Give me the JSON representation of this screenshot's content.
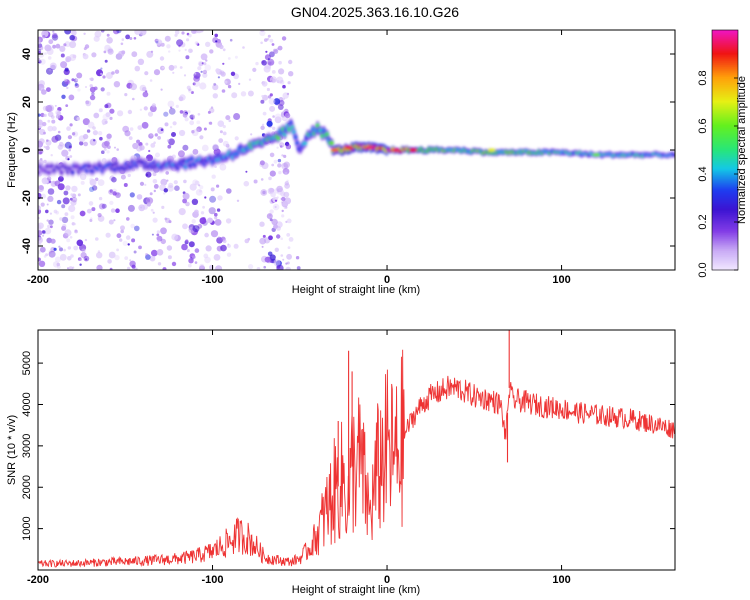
{
  "title": "GN04.2025.363.16.10.G26",
  "chart_data": [
    {
      "type": "heatmap",
      "xlabel": "Height of straight line (km)",
      "ylabel": "Frequency (Hz)",
      "xlim": [
        -200,
        165
      ],
      "ylim": [
        -50,
        50
      ],
      "xticks": [
        "-200",
        "-100",
        "0",
        "100"
      ],
      "xtick_values": [
        -200,
        -100,
        0,
        100
      ],
      "yticks": [
        "-40",
        "-20",
        "0",
        "20",
        "40"
      ],
      "ytick_values": [
        -40,
        -20,
        0,
        20,
        40
      ],
      "colorbar": {
        "label": "Normalized spectral amplitude",
        "range": [
          0.0,
          1.0
        ],
        "ticks": [
          "0.0",
          "0.2",
          "0.4",
          "0.6",
          "0.8"
        ],
        "tick_values": [
          0.0,
          0.2,
          0.4,
          0.6,
          0.8
        ]
      },
      "ridge": {
        "x": [
          -200,
          -180,
          -160,
          -140,
          -120,
          -100,
          -90,
          -80,
          -70,
          -60,
          -55,
          -50,
          -45,
          -40,
          -35,
          -30,
          -25,
          -20,
          -10,
          0,
          20,
          40,
          60,
          80,
          100,
          120,
          140,
          160,
          165
        ],
        "freq": [
          -8,
          -8,
          -7,
          -6,
          -6,
          -4,
          -2,
          1,
          3,
          7,
          10,
          0,
          7,
          9,
          6,
          0,
          0,
          1,
          1,
          0,
          0,
          0,
          -1,
          -1,
          -1,
          -2,
          -2,
          -2,
          -2
        ],
        "amplitude": [
          0.2,
          0.25,
          0.3,
          0.3,
          0.35,
          0.35,
          0.4,
          0.45,
          0.45,
          0.5,
          0.4,
          0.35,
          0.45,
          0.45,
          0.5,
          0.55,
          0.7,
          0.8,
          0.85,
          0.9,
          0.6,
          0.5,
          0.55,
          0.5,
          0.45,
          0.4,
          0.45,
          0.35,
          0.3
        ]
      }
    },
    {
      "type": "line",
      "xlabel": "Height of straight line (km)",
      "ylabel": "SNR (10 * v/v)",
      "xlim": [
        -200,
        165
      ],
      "ylim": [
        0,
        5800
      ],
      "xticks": [
        "-200",
        "-100",
        "0",
        "100"
      ],
      "xtick_values": [
        -200,
        -100,
        0,
        100
      ],
      "yticks": [
        "1000",
        "2000",
        "3000",
        "4000",
        "5000"
      ],
      "ytick_values": [
        1000,
        2000,
        3000,
        4000,
        5000
      ],
      "series": [
        {
          "name": "SNR",
          "color": "#ee3333",
          "x": [
            -200,
            -180,
            -160,
            -140,
            -120,
            -110,
            -100,
            -90,
            -85,
            -80,
            -75,
            -70,
            -60,
            -55,
            -50,
            -45,
            -40,
            -35,
            -30,
            -25,
            -22,
            -20,
            -15,
            -10,
            -5,
            0,
            5,
            10,
            15,
            20,
            25,
            30,
            35,
            40,
            45,
            50,
            55,
            60,
            65,
            68,
            70,
            72,
            75,
            80,
            90,
            100,
            110,
            120,
            130,
            140,
            150,
            160,
            165
          ],
          "values": [
            150,
            160,
            190,
            220,
            270,
            330,
            450,
            700,
            850,
            780,
            560,
            300,
            220,
            200,
            280,
            500,
            850,
            1400,
            1900,
            2200,
            1600,
            2500,
            2600,
            1300,
            2500,
            2900,
            2700,
            3300,
            3700,
            4000,
            4200,
            4300,
            4400,
            4400,
            4300,
            4200,
            4150,
            4100,
            4000,
            3200,
            4400,
            4100,
            4100,
            4050,
            3950,
            3900,
            3800,
            3750,
            3700,
            3650,
            3550,
            3450,
            3400
          ],
          "spikes": [
            {
              "x": -22,
              "y": 5300
            },
            {
              "x": -28,
              "y": 3600
            },
            {
              "x": -20,
              "y": 4800
            },
            {
              "x": 70,
              "y": 5800
            },
            {
              "x": 69,
              "y": 2600
            }
          ]
        }
      ]
    }
  ]
}
